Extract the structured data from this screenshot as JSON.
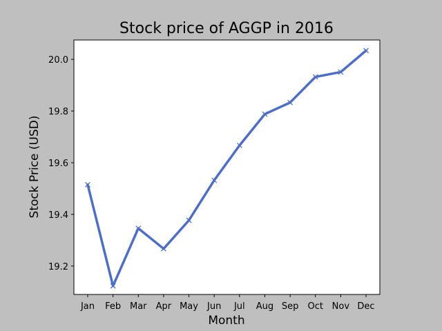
{
  "chart_data": {
    "type": "line",
    "title": "Stock price of AGGP in 2016",
    "xlabel": "Month",
    "ylabel": "Stock Price (USD)",
    "categories": [
      "Jan",
      "Feb",
      "Mar",
      "Apr",
      "May",
      "Jun",
      "Jul",
      "Aug",
      "Sep",
      "Oct",
      "Nov",
      "Dec"
    ],
    "series": [
      {
        "values": [
          19.515,
          19.123,
          19.346,
          19.267,
          19.377,
          19.532,
          19.667,
          19.788,
          19.833,
          19.932,
          19.951,
          20.034
        ],
        "color": "#4c6ec8",
        "marker": "x"
      }
    ],
    "ylim": [
      19.09,
      20.075
    ],
    "yticks": [
      19.2,
      19.4,
      19.6,
      19.8,
      20.0
    ],
    "ytick_labels": [
      "19.2",
      "19.4",
      "19.6",
      "19.8",
      "20.0"
    ],
    "grid": false,
    "background": "#bfbfbf",
    "plot_background": "#ffffff"
  }
}
